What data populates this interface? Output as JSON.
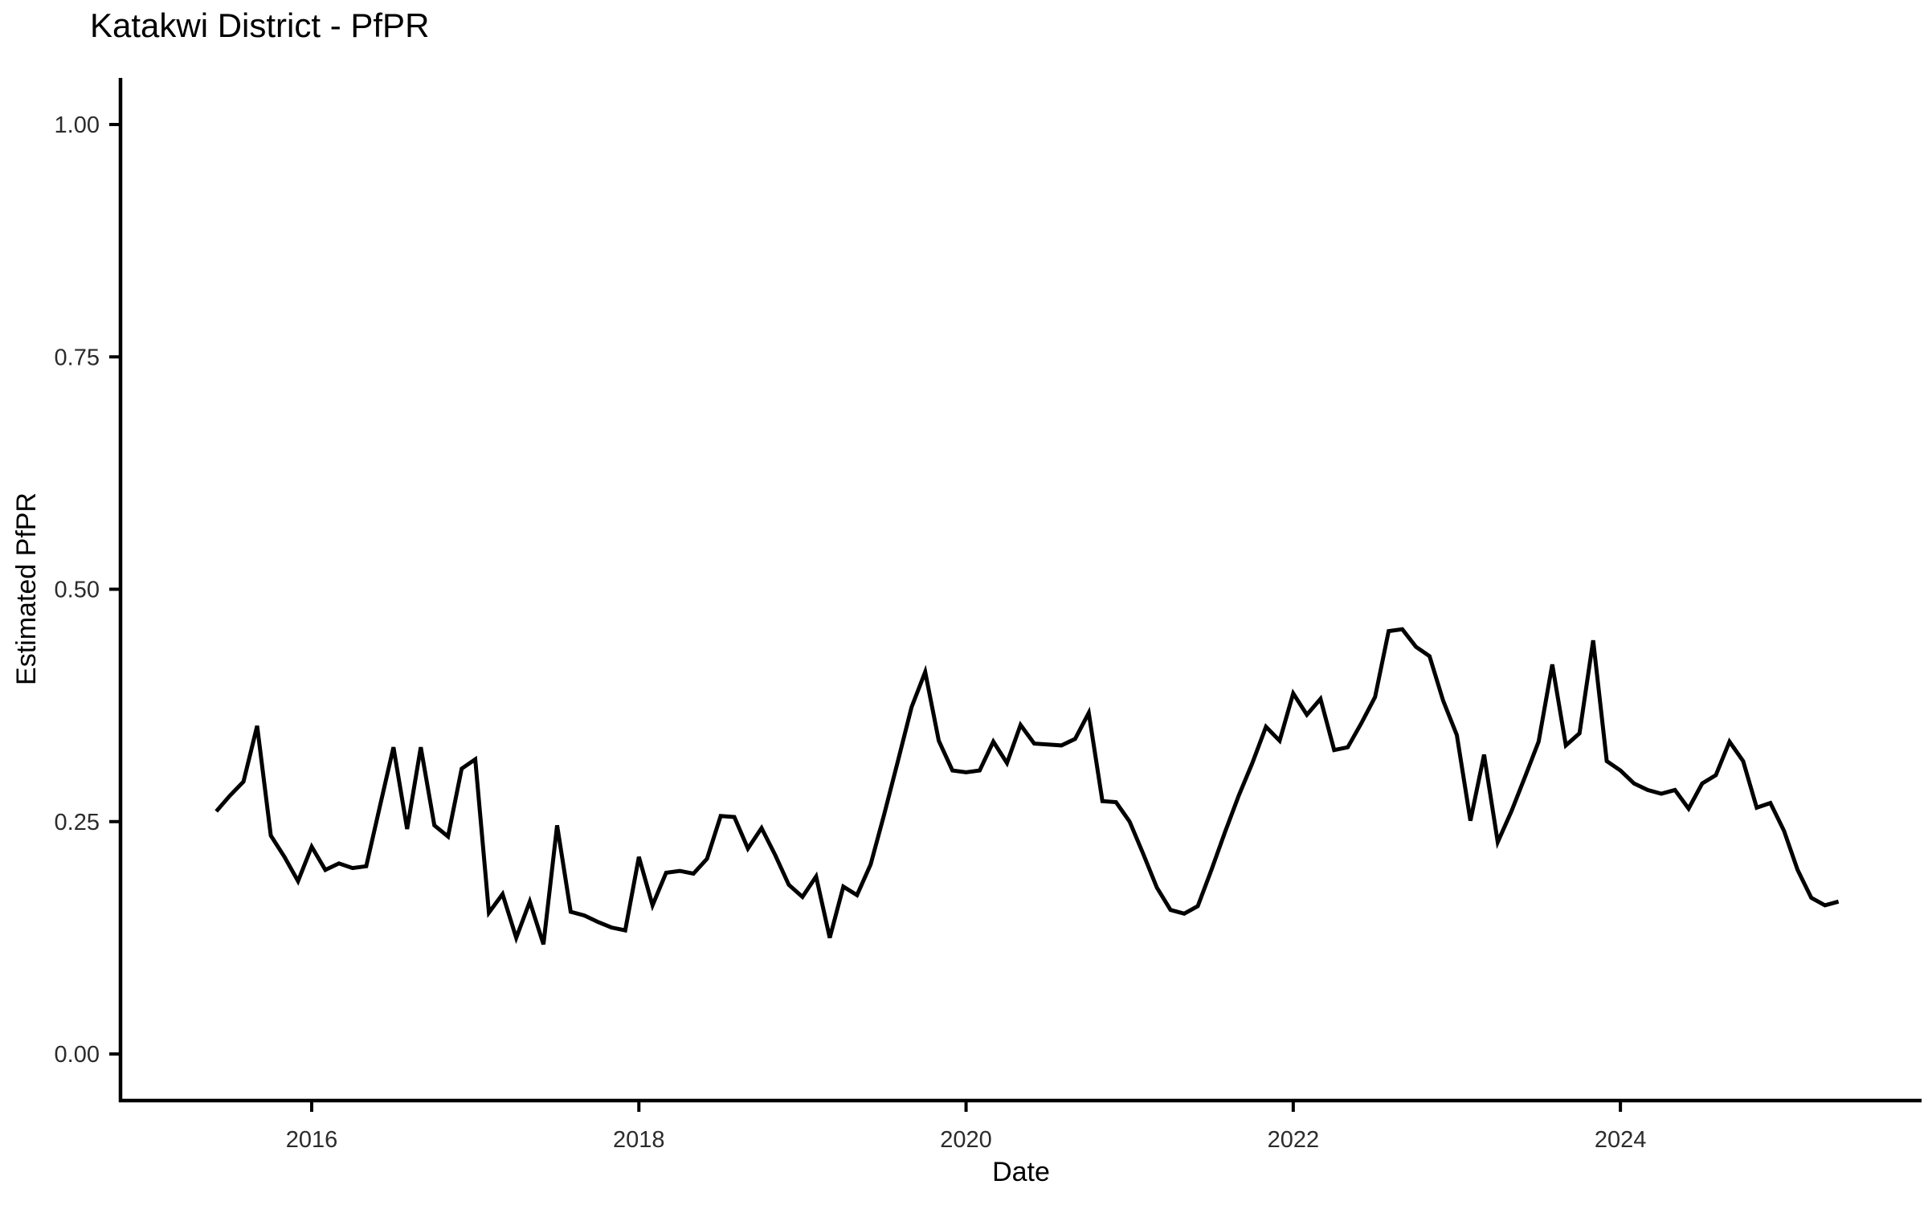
{
  "page": {
    "background": "#ffffff"
  },
  "chart": {
    "title": "Katakwi District - PfPR",
    "x_axis": {
      "label": "Date",
      "tick_labels": [
        "2016",
        "2018",
        "2020",
        "2022",
        "2024"
      ],
      "tick_years": [
        2016,
        2018,
        2020,
        2022,
        2024
      ]
    },
    "y_axis": {
      "label": "Estimated PfPR",
      "tick_labels": [
        "0.00",
        "0.25",
        "0.50",
        "0.75",
        "1.00"
      ],
      "tick_values": [
        0,
        0.25,
        0.5,
        0.75,
        1.0
      ]
    },
    "line_color": "#000000",
    "axis_color": "#000000",
    "text_color": "#2b2b2b"
  },
  "chart_data": {
    "type": "line",
    "title": "Katakwi District - PfPR",
    "xlabel": "Date",
    "ylabel": "Estimated PfPR",
    "grid": false,
    "legend": false,
    "frequency": "monthly",
    "x_range": [
      "2015-06",
      "2025-05"
    ],
    "ylim": [
      0,
      1.05
    ],
    "x_tick_years": [
      2016,
      2018,
      2020,
      2022,
      2024
    ],
    "y_ticks": [
      0.0,
      0.25,
      0.5,
      0.75,
      1.0
    ],
    "series": [
      {
        "name": "Estimated PfPR",
        "months": [
          "2015-06",
          "2015-07",
          "2015-08",
          "2015-09",
          "2015-10",
          "2015-11",
          "2015-12",
          "2016-01",
          "2016-02",
          "2016-03",
          "2016-04",
          "2016-05",
          "2016-06",
          "2016-07",
          "2016-08",
          "2016-09",
          "2016-10",
          "2016-11",
          "2016-12",
          "2017-01",
          "2017-02",
          "2017-03",
          "2017-04",
          "2017-05",
          "2017-06",
          "2017-07",
          "2017-08",
          "2017-09",
          "2017-10",
          "2017-11",
          "2017-12",
          "2018-01",
          "2018-02",
          "2018-03",
          "2018-04",
          "2018-05",
          "2018-06",
          "2018-07",
          "2018-08",
          "2018-09",
          "2018-10",
          "2018-11",
          "2018-12",
          "2019-01",
          "2019-02",
          "2019-03",
          "2019-04",
          "2019-05",
          "2019-06",
          "2019-07",
          "2019-08",
          "2019-09",
          "2019-10",
          "2019-11",
          "2019-12",
          "2020-01",
          "2020-02",
          "2020-03",
          "2020-04",
          "2020-05",
          "2020-06",
          "2020-07",
          "2020-08",
          "2020-09",
          "2020-10",
          "2020-11",
          "2020-12",
          "2021-01",
          "2021-02",
          "2021-03",
          "2021-04",
          "2021-05",
          "2021-06",
          "2021-07",
          "2021-08",
          "2021-09",
          "2021-10",
          "2021-11",
          "2021-12",
          "2022-01",
          "2022-02",
          "2022-03",
          "2022-04",
          "2022-05",
          "2022-06",
          "2022-07",
          "2022-08",
          "2022-09",
          "2022-10",
          "2022-11",
          "2022-12",
          "2023-01",
          "2023-02",
          "2023-03",
          "2023-04",
          "2023-05",
          "2023-06",
          "2023-07",
          "2023-08",
          "2023-09",
          "2023-10",
          "2023-11",
          "2023-12",
          "2024-01",
          "2024-02",
          "2024-03",
          "2024-04",
          "2024-05",
          "2024-06",
          "2024-07",
          "2024-08",
          "2024-09",
          "2024-10",
          "2024-11",
          "2024-12",
          "2025-01",
          "2025-02",
          "2025-03",
          "2025-04",
          "2025-05"
        ],
        "values": [
          0.261,
          0.278,
          0.293,
          0.353,
          0.235,
          0.212,
          0.186,
          0.223,
          0.198,
          0.205,
          0.2,
          0.202,
          0.266,
          0.33,
          0.242,
          0.33,
          0.246,
          0.234,
          0.307,
          0.317,
          0.152,
          0.172,
          0.125,
          0.164,
          0.118,
          0.246,
          0.153,
          0.149,
          0.142,
          0.136,
          0.133,
          0.212,
          0.16,
          0.195,
          0.197,
          0.194,
          0.21,
          0.256,
          0.255,
          0.221,
          0.243,
          0.214,
          0.182,
          0.169,
          0.191,
          0.125,
          0.18,
          0.171,
          0.204,
          0.258,
          0.315,
          0.373,
          0.411,
          0.337,
          0.305,
          0.303,
          0.305,
          0.336,
          0.313,
          0.354,
          0.334,
          0.333,
          0.332,
          0.339,
          0.367,
          0.272,
          0.271,
          0.25,
          0.215,
          0.179,
          0.155,
          0.151,
          0.159,
          0.198,
          0.239,
          0.278,
          0.313,
          0.352,
          0.337,
          0.388,
          0.365,
          0.382,
          0.327,
          0.33,
          0.356,
          0.384,
          0.455,
          0.457,
          0.438,
          0.428,
          0.38,
          0.343,
          0.251,
          0.322,
          0.228,
          0.261,
          0.298,
          0.336,
          0.419,
          0.332,
          0.345,
          0.445,
          0.315,
          0.305,
          0.291,
          0.284,
          0.28,
          0.284,
          0.264,
          0.291,
          0.3,
          0.336,
          0.315,
          0.265,
          0.27,
          0.24,
          0.198,
          0.168,
          0.16,
          0.164
        ]
      }
    ]
  }
}
